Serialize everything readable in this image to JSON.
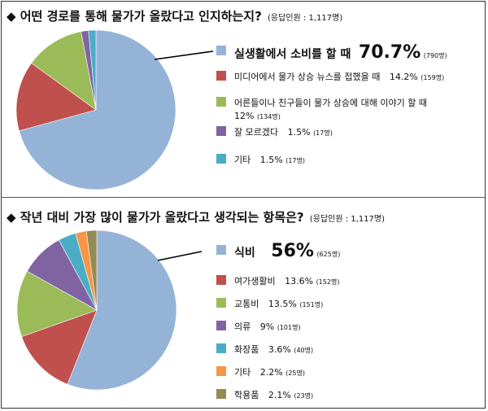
{
  "charts": [
    {
      "title": "◆ 어떤 경로를 통해 물가가 올랐다고 인지하는지?",
      "note": "(응답인원 : 1,117명)",
      "chart_data": {
        "type": "pie",
        "title": "어떤 경로를 통해 물가가 올랐다고 인지하는지?",
        "slices": [
          {
            "label": "실생활에서 소비를 할 때",
            "percent_text": "70.7%",
            "count_text": "(790명)",
            "value": 70.7,
            "color": "#95b3d7"
          },
          {
            "label": "미디어에서 물가 상승 뉴스를 접했을 때",
            "percent_text": "14.2%",
            "count_text": "(159명)",
            "value": 14.2,
            "color": "#c0504d"
          },
          {
            "label": "어른들이나 친구들이 물가 상승에 대해 이야기 할 때",
            "percent_text": "12%",
            "count_text": "(134명)",
            "value": 12,
            "color": "#9bbb59"
          },
          {
            "label": "잘 모르겠다",
            "percent_text": "1.5%",
            "count_text": "(17명)",
            "value": 1.5,
            "color": "#8064a2"
          },
          {
            "label": "기타",
            "percent_text": "1.5%",
            "count_text": "(17명)",
            "value": 1.5,
            "color": "#4bacc6"
          }
        ]
      }
    },
    {
      "title": "◆ 작년 대비 가장 많이 물가가 올랐다고 생각되는 항목은?",
      "note": "(응답인원 : 1,117명)",
      "chart_data": {
        "type": "pie",
        "title": "작년 대비 가장 많이 물가가 올랐다고 생각되는 항목은?",
        "slices": [
          {
            "label": "식비",
            "percent_text": "56%",
            "count_text": "(625명)",
            "value": 56,
            "color": "#95b3d7"
          },
          {
            "label": "여가생활비",
            "percent_text": "13.6%",
            "count_text": "(152명)",
            "value": 13.6,
            "color": "#c0504d"
          },
          {
            "label": "교통비",
            "percent_text": "13.5%",
            "count_text": "(151명)",
            "value": 13.5,
            "color": "#9bbb59"
          },
          {
            "label": "의류",
            "percent_text": "9%",
            "count_text": "(101명)",
            "value": 9,
            "color": "#8064a2"
          },
          {
            "label": "화장품",
            "percent_text": "3.6%",
            "count_text": "(40명)",
            "value": 3.6,
            "color": "#4bacc6"
          },
          {
            "label": "기타",
            "percent_text": "2.2%",
            "count_text": "(25명)",
            "value": 2.2,
            "color": "#f79646"
          },
          {
            "label": "학용품",
            "percent_text": "2.1%",
            "count_text": "(23명)",
            "value": 2.1,
            "color": "#948a54"
          }
        ]
      }
    }
  ]
}
